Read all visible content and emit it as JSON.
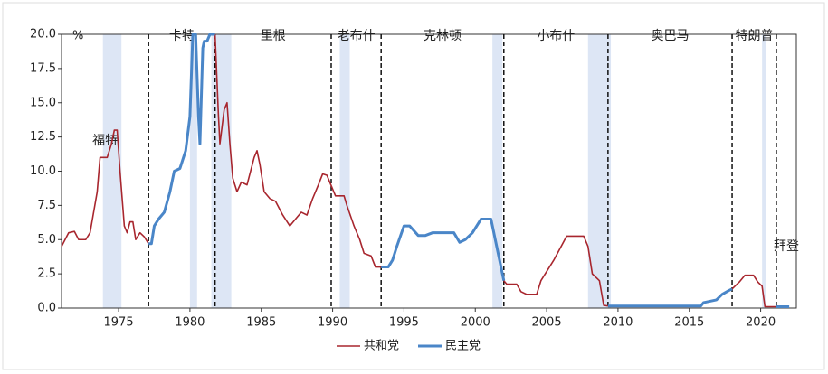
{
  "chart_data": {
    "type": "line",
    "y_unit": "%",
    "xlim": [
      1971,
      2022.5
    ],
    "xticks": [
      1975,
      1980,
      1985,
      1990,
      1995,
      2000,
      2005,
      2010,
      2015,
      2020
    ],
    "ylim": [
      0,
      20
    ],
    "yticks": [
      {
        "value": 0,
        "label": "0.0"
      },
      2.5,
      {
        "value": 5,
        "label": "5.0"
      },
      7.5,
      {
        "value": 10,
        "label": "10.0"
      },
      12.5,
      {
        "value": 15,
        "label": "15.0"
      },
      17.5,
      {
        "value": 20,
        "label": "20.0"
      }
    ],
    "recession_color": "#dde6f5",
    "recessions": [
      [
        1973.9,
        1975.2
      ],
      [
        1980.0,
        1980.5
      ],
      [
        1981.5,
        1982.9
      ],
      [
        1990.5,
        1991.2
      ],
      [
        2001.2,
        2001.9
      ],
      [
        2007.9,
        2009.5
      ],
      [
        2020.1,
        2020.4
      ]
    ],
    "term_boundaries": [
      1977.1,
      1981.76,
      1989.9,
      1993.4,
      2002.0,
      2009.3,
      2018.0,
      2021.1
    ],
    "presidents": [
      "福特",
      "卡特",
      "里根",
      "老布什",
      "克林顿",
      "小布什",
      "奥巴马",
      "特朗普",
      "拜登"
    ],
    "x": [
      1971.0,
      1971.5,
      1971.9,
      1972.2,
      1972.7,
      1973.0,
      1973.5,
      1973.7,
      1974.2,
      1974.5,
      1974.7,
      1974.9,
      1975.1,
      1975.4,
      1975.6,
      1975.8,
      1976.0,
      1976.2,
      1976.5,
      1976.8,
      1977.1,
      1977.3,
      1977.5,
      1977.8,
      1978.2,
      1978.6,
      1978.9,
      1979.3,
      1979.7,
      1980.0,
      1980.2,
      1980.4,
      1980.6,
      1980.7,
      1980.9,
      1981.0,
      1981.2,
      1981.4,
      1981.76,
      1982.0,
      1982.1,
      1982.4,
      1982.6,
      1982.8,
      1983.0,
      1983.3,
      1983.6,
      1984.0,
      1984.5,
      1984.7,
      1984.9,
      1985.2,
      1985.6,
      1986.0,
      1986.5,
      1987.0,
      1987.4,
      1987.8,
      1988.2,
      1988.6,
      1989.0,
      1989.3,
      1989.6,
      1990.2,
      1990.8,
      1991.0,
      1991.5,
      1991.9,
      1992.2,
      1992.7,
      1993.0,
      1993.4,
      1993.9,
      1994.2,
      1994.5,
      1995.0,
      1995.4,
      1996.0,
      1996.5,
      1997.0,
      1998.5,
      1998.9,
      1999.3,
      1999.8,
      2000.4,
      2001.1,
      2001.5,
      2002.0,
      2002.2,
      2002.9,
      2003.2,
      2003.6,
      2004.3,
      2004.6,
      2005.5,
      2006.4,
      2007.6,
      2007.9,
      2008.2,
      2008.7,
      2009.0,
      2009.3,
      2015.8,
      2016.0,
      2016.9,
      2017.3,
      2017.8,
      2018.0,
      2018.5,
      2018.9,
      2019.5,
      2019.8,
      2020.1,
      2020.3,
      2021.1,
      2022.0
    ],
    "series": [
      {
        "name": "共和党",
        "color": "#a8262e",
        "values": [
          4.5,
          5.5,
          5.6,
          5.0,
          5.0,
          5.5,
          8.5,
          11.0,
          11.0,
          12.0,
          13.0,
          13.0,
          10.0,
          6.0,
          5.5,
          6.3,
          6.3,
          5.0,
          5.5,
          5.2,
          4.7,
          null,
          null,
          null,
          null,
          null,
          null,
          null,
          null,
          null,
          null,
          null,
          null,
          null,
          null,
          null,
          null,
          null,
          20.0,
          14.0,
          12.0,
          14.5,
          15.0,
          12.0,
          9.5,
          8.5,
          9.2,
          9.0,
          11.0,
          11.5,
          10.5,
          8.5,
          8.0,
          7.8,
          6.8,
          6.0,
          6.5,
          7.0,
          6.8,
          8.0,
          9.0,
          9.8,
          9.7,
          8.2,
          8.2,
          7.5,
          6.0,
          5.0,
          4.0,
          3.8,
          3.0,
          3.0,
          null,
          null,
          null,
          null,
          null,
          null,
          null,
          null,
          null,
          null,
          null,
          null,
          null,
          null,
          null,
          2.0,
          1.75,
          1.75,
          1.2,
          1.0,
          1.0,
          2.0,
          3.5,
          5.25,
          5.25,
          4.5,
          2.5,
          2.0,
          0.2,
          0.15,
          null,
          null,
          null,
          null,
          null,
          1.4,
          1.9,
          2.4,
          2.4,
          1.9,
          1.6,
          0.1,
          0.1,
          null
        ]
      },
      {
        "name": "民主党",
        "color": "#4a86c8",
        "values": [
          null,
          null,
          null,
          null,
          null,
          null,
          null,
          null,
          null,
          null,
          null,
          null,
          null,
          null,
          null,
          null,
          null,
          null,
          null,
          null,
          4.7,
          4.7,
          6.0,
          6.5,
          7.0,
          8.5,
          10.0,
          10.2,
          11.5,
          14.0,
          20.0,
          20.0,
          14.0,
          12.0,
          19.0,
          19.5,
          19.5,
          20.0,
          20.0,
          null,
          null,
          null,
          null,
          null,
          null,
          null,
          null,
          null,
          null,
          null,
          null,
          null,
          null,
          null,
          null,
          null,
          null,
          null,
          null,
          null,
          null,
          null,
          null,
          null,
          null,
          null,
          null,
          null,
          null,
          null,
          null,
          3.0,
          3.0,
          3.5,
          4.5,
          6.0,
          6.0,
          5.3,
          5.3,
          5.5,
          5.5,
          4.8,
          5.0,
          5.5,
          6.5,
          6.5,
          4.5,
          2.0,
          null,
          null,
          null,
          null,
          null,
          null,
          null,
          null,
          null,
          null,
          null,
          null,
          null,
          0.15,
          0.15,
          0.4,
          0.6,
          1.0,
          1.3,
          1.4,
          null,
          null,
          null,
          null,
          null,
          null,
          0.1,
          0.1
        ]
      }
    ]
  }
}
